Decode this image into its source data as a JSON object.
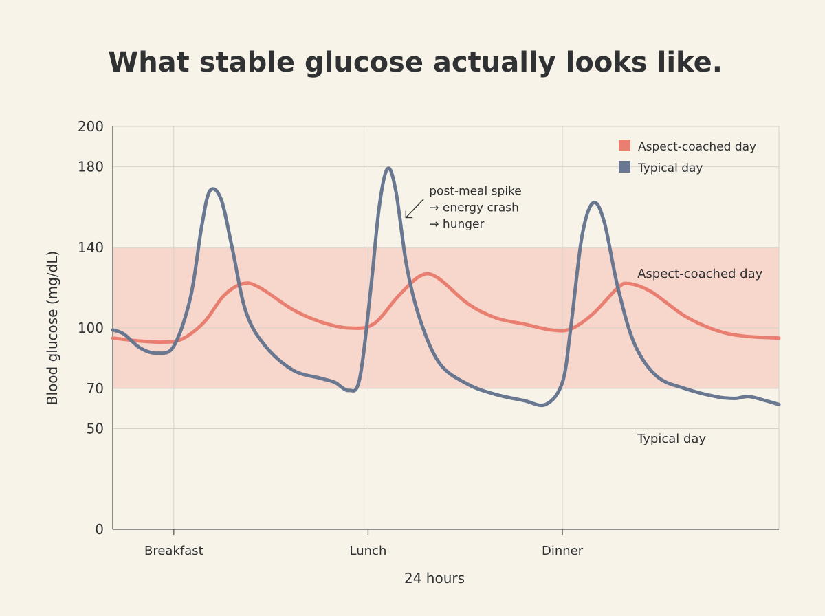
{
  "chart_data": {
    "type": "line",
    "title": "What stable glucose actually looks like.",
    "xlabel": "24 hours",
    "ylabel": "Blood glucose (mg/dL)",
    "ylim": [
      0,
      200
    ],
    "yticks": [
      0,
      50,
      70,
      100,
      140,
      180,
      200
    ],
    "xlim": [
      0,
      24
    ],
    "xticks": [
      {
        "x": 2.2,
        "label": "Breakfast"
      },
      {
        "x": 9.2,
        "label": "Lunch"
      },
      {
        "x": 16.2,
        "label": "Dinner"
      }
    ],
    "grid": true,
    "target_band": {
      "low": 70,
      "high": 140,
      "color": "#f7d7cc"
    },
    "legend": {
      "position": "top-right",
      "entries": [
        "Aspect-coached day",
        "Typical day"
      ]
    },
    "series": [
      {
        "name": "Aspect-coached day",
        "color": "#e97f71",
        "points": [
          [
            0,
            95
          ],
          [
            1,
            93.5
          ],
          [
            1.8,
            93
          ],
          [
            2.5,
            94.5
          ],
          [
            3.3,
            103
          ],
          [
            4,
            116
          ],
          [
            4.7,
            122
          ],
          [
            5.3,
            120
          ],
          [
            6.5,
            109
          ],
          [
            7.5,
            103
          ],
          [
            8.5,
            100
          ],
          [
            9.4,
            102
          ],
          [
            10.3,
            116
          ],
          [
            11.1,
            126
          ],
          [
            11.7,
            125
          ],
          [
            12.8,
            112
          ],
          [
            13.8,
            105
          ],
          [
            14.8,
            102
          ],
          [
            15.8,
            99
          ],
          [
            16.5,
            99.5
          ],
          [
            17.3,
            107
          ],
          [
            18.2,
            120
          ],
          [
            18.6,
            122
          ],
          [
            19.4,
            118
          ],
          [
            20.6,
            106
          ],
          [
            21.7,
            99
          ],
          [
            22.7,
            96
          ],
          [
            24,
            95
          ]
        ]
      },
      {
        "name": "Typical day",
        "color": "#697890",
        "points": [
          [
            0,
            99
          ],
          [
            0.4,
            97
          ],
          [
            1,
            90
          ],
          [
            1.6,
            87.5
          ],
          [
            2.2,
            91
          ],
          [
            2.8,
            115
          ],
          [
            3.2,
            150
          ],
          [
            3.5,
            168
          ],
          [
            3.9,
            164
          ],
          [
            4.3,
            140
          ],
          [
            4.8,
            108
          ],
          [
            5.5,
            91
          ],
          [
            6.5,
            79
          ],
          [
            7.5,
            75
          ],
          [
            8,
            73
          ],
          [
            8.5,
            69
          ],
          [
            8.9,
            75
          ],
          [
            9.3,
            120
          ],
          [
            9.6,
            160
          ],
          [
            9.9,
            179
          ],
          [
            10.2,
            168
          ],
          [
            10.6,
            130
          ],
          [
            11.1,
            103
          ],
          [
            11.8,
            82
          ],
          [
            12.8,
            72
          ],
          [
            13.8,
            67
          ],
          [
            14.8,
            64
          ],
          [
            15.6,
            62
          ],
          [
            16.2,
            73
          ],
          [
            16.5,
            100
          ],
          [
            16.9,
            145
          ],
          [
            17.3,
            162
          ],
          [
            17.7,
            153
          ],
          [
            18.2,
            120
          ],
          [
            18.8,
            92
          ],
          [
            19.6,
            76
          ],
          [
            20.6,
            70
          ],
          [
            21.7,
            66
          ],
          [
            22.4,
            65
          ],
          [
            22.9,
            66
          ],
          [
            23.5,
            64
          ],
          [
            24,
            62
          ]
        ]
      }
    ],
    "annotations": [
      {
        "lines": [
          "post-meal spike",
          "→ energy crash",
          "→ hunger"
        ],
        "x": 11.4,
        "y": 166
      },
      {
        "text": "Aspect-coached day",
        "x": 18.9,
        "y": 127
      },
      {
        "text": "Typical day",
        "x": 18.9,
        "y": 45
      }
    ]
  }
}
